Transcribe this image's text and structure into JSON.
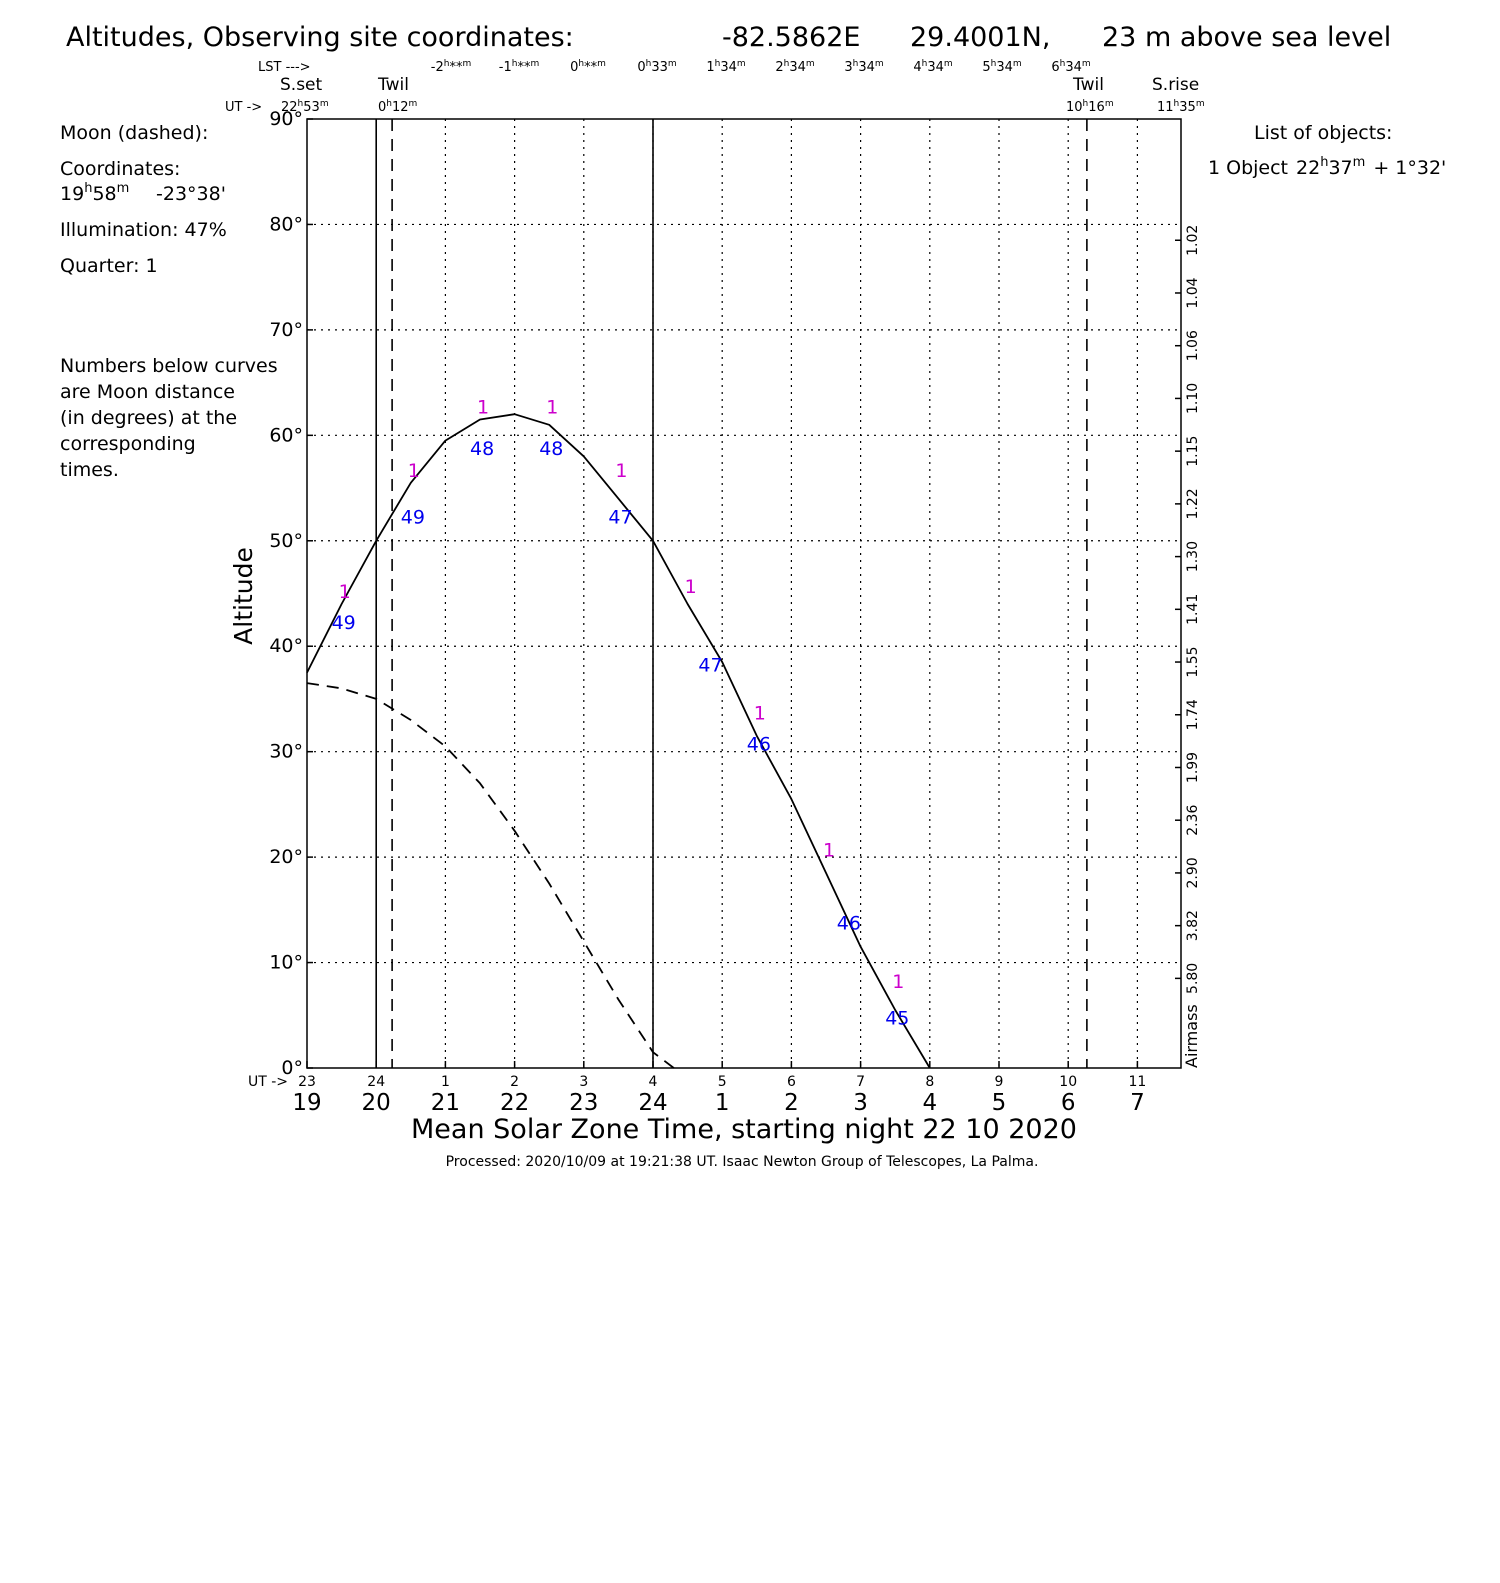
{
  "header": {
    "title_prefix": "Altitudes, Observing site coordinates:",
    "lon": "-82.5862E",
    "lat": "29.4001N,",
    "elevation": "23 m above sea level",
    "lst_label": "LST --->",
    "lst_ticks": [
      {
        "h": "-2",
        "m": "**"
      },
      {
        "h": "-1",
        "m": "**"
      },
      {
        "h": "0",
        "m": "**"
      },
      {
        "h": "0",
        "m": "33"
      },
      {
        "h": "1",
        "m": "34"
      },
      {
        "h": "2",
        "m": "34"
      },
      {
        "h": "3",
        "m": "34"
      },
      {
        "h": "4",
        "m": "34"
      },
      {
        "h": "5",
        "m": "34"
      },
      {
        "h": "6",
        "m": "34"
      }
    ],
    "ut_arrow": "UT ->",
    "sunset_label": "S.set",
    "sunset_ut": {
      "h": "22",
      "m": "53"
    },
    "twil1_label": "Twil",
    "twil1_ut": {
      "h": "0",
      "m": "12"
    },
    "twil2_label": "Twil",
    "twil2_ut": {
      "h": "10",
      "m": "16"
    },
    "sunrise_label": "S.rise",
    "sunrise_ut": {
      "h": "11",
      "m": "35"
    }
  },
  "left_panel": {
    "moon_label": "Moon (dashed):",
    "coords_label": "Coordinates:",
    "moon_ra": {
      "h": "19",
      "m": "58"
    },
    "moon_dec": "-23°38'",
    "illumination": "Illumination:  47%",
    "quarter": "Quarter: 1",
    "note_lines": [
      "Numbers below curves",
      "are Moon distance",
      "(in degrees) at the",
      "corresponding",
      "times."
    ]
  },
  "right_panel": {
    "list_title": "List of objects:",
    "object_prefix": "1 Object",
    "object_ra": {
      "h": "22",
      "m": "37"
    },
    "object_dec": "+ 1°32'"
  },
  "footer": {
    "xlabel": "Mean Solar Zone Time, starting night 22 10 2020",
    "processed": "Processed: 2020/10/09 at 19:21:38 UT. Isaac  Newton Group of Telescopes, La Palma.",
    "ut_axis_label": "UT ->"
  },
  "chart_data": {
    "type": "line",
    "title": "Altitudes, Observing site coordinates:  -82.5862E  29.4001N,  23 m above sea level",
    "xlabel": "Mean Solar Zone Time, starting night 22 10 2020",
    "ylabel": "Altitude",
    "y2label": "Airmass",
    "xlim": [
      19,
      31.5
    ],
    "ylim": [
      0,
      90
    ],
    "grid": true,
    "x_ticks_local": [
      "19",
      "20",
      "21",
      "22",
      "23",
      "24",
      "1",
      "2",
      "3",
      "4",
      "5",
      "6",
      "7"
    ],
    "x_ticks_ut": [
      "23",
      "24",
      "1",
      "2",
      "3",
      "4",
      "5",
      "6",
      "7",
      "8",
      "9",
      "10",
      "11"
    ],
    "y_ticks": [
      "0°",
      "10°",
      "20°",
      "30°",
      "40°",
      "50°",
      "60°",
      "70°",
      "80°",
      "90°"
    ],
    "airmass_ticks": [
      {
        "alt": 78.5,
        "label": "1.02"
      },
      {
        "alt": 73.5,
        "label": "1.04"
      },
      {
        "alt": 68.5,
        "label": "1.06"
      },
      {
        "alt": 63.5,
        "label": "1.10"
      },
      {
        "alt": 58.5,
        "label": "1.15"
      },
      {
        "alt": 53.5,
        "label": "1.22"
      },
      {
        "alt": 48.5,
        "label": "1.30"
      },
      {
        "alt": 43.5,
        "label": "1.41"
      },
      {
        "alt": 38.5,
        "label": "1.55"
      },
      {
        "alt": 33.5,
        "label": "1.74"
      },
      {
        "alt": 28.5,
        "label": "1.99"
      },
      {
        "alt": 23.5,
        "label": "2.36"
      },
      {
        "alt": 18.5,
        "label": "2.90"
      },
      {
        "alt": 13.5,
        "label": "3.82"
      },
      {
        "alt": 8.5,
        "label": "5.80"
      }
    ],
    "vertical_markers": [
      {
        "x": 20.0,
        "style": "solid",
        "label": "sunset-line"
      },
      {
        "x": 20.23,
        "style": "dashed",
        "label": "twilight-start"
      },
      {
        "x": 24.0,
        "style": "solid",
        "label": "midnight"
      },
      {
        "x": 30.27,
        "style": "dashed",
        "label": "twilight-end"
      }
    ],
    "series": [
      {
        "name": "1",
        "style": "solid",
        "x": [
          19.0,
          19.5,
          20.0,
          20.5,
          21.0,
          21.5,
          22.0,
          22.5,
          23.0,
          23.5,
          24.0,
          24.5,
          25.0,
          25.5,
          26.0,
          26.5,
          27.0,
          27.5,
          28.0
        ],
        "y": [
          37.5,
          44,
          50,
          55.5,
          59.5,
          61.5,
          62,
          61,
          58,
          54,
          50,
          44,
          38.5,
          31.5,
          25.5,
          18.5,
          11.5,
          5.5,
          0
        ]
      },
      {
        "name": "Moon",
        "style": "dashed",
        "x": [
          19.0,
          19.5,
          20.0,
          20.5,
          21.0,
          21.5,
          22.0,
          22.5,
          23.0,
          23.5,
          24.0,
          24.3
        ],
        "y": [
          36.5,
          36,
          35,
          33,
          30.5,
          27,
          22.5,
          17.5,
          12,
          6.5,
          1.5,
          0
        ]
      }
    ],
    "moon_distance_labels": [
      {
        "x": 19.5,
        "y": 42,
        "value": "49"
      },
      {
        "x": 20.5,
        "y": 52,
        "value": "49"
      },
      {
        "x": 21.5,
        "y": 58.5,
        "value": "48"
      },
      {
        "x": 22.5,
        "y": 58.5,
        "value": "48"
      },
      {
        "x": 23.5,
        "y": 52,
        "value": "47"
      },
      {
        "x": 24.8,
        "y": 38,
        "value": "47"
      },
      {
        "x": 25.5,
        "y": 30.5,
        "value": "46"
      },
      {
        "x": 26.8,
        "y": 13.5,
        "value": "46"
      },
      {
        "x": 27.5,
        "y": 4.5,
        "value": "45"
      }
    ],
    "object_id_labels": [
      {
        "x": 19.5,
        "y": 44,
        "value": "1"
      },
      {
        "x": 20.5,
        "y": 55.5,
        "value": "1"
      },
      {
        "x": 21.5,
        "y": 61.5,
        "value": "1"
      },
      {
        "x": 22.5,
        "y": 61.5,
        "value": "1"
      },
      {
        "x": 23.5,
        "y": 55.5,
        "value": "1"
      },
      {
        "x": 24.5,
        "y": 44.5,
        "value": "1"
      },
      {
        "x": 25.5,
        "y": 32.5,
        "value": "1"
      },
      {
        "x": 26.5,
        "y": 19.5,
        "value": "1"
      },
      {
        "x": 27.5,
        "y": 7,
        "value": "1"
      }
    ],
    "colors": {
      "object_label": "#cc00cc",
      "distance_label": "#0000ee",
      "line": "#000000"
    }
  }
}
